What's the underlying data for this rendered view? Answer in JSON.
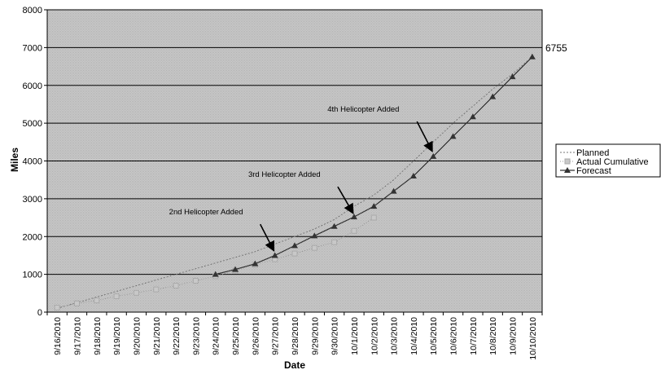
{
  "chart_data": {
    "type": "line",
    "title": "",
    "xlabel": "Date",
    "ylabel": "Miles",
    "ylim": [
      0,
      8000
    ],
    "yticks": [
      0,
      1000,
      2000,
      3000,
      4000,
      5000,
      6000,
      7000,
      8000
    ],
    "grid": true,
    "legend_position": "right",
    "categories": [
      "9/16/2010",
      "9/17/2010",
      "9/18/2010",
      "9/19/2010",
      "9/20/2010",
      "9/21/2010",
      "9/22/2010",
      "9/23/2010",
      "9/24/2010",
      "9/25/2010",
      "9/26/2010",
      "9/27/2010",
      "9/28/2010",
      "9/29/2010",
      "9/30/2010",
      "10/1/2010",
      "10/2/2010",
      "10/3/2010",
      "10/4/2010",
      "10/5/2010",
      "10/6/2010",
      "10/7/2010",
      "10/8/2010",
      "10/9/2010",
      "10/10/2010"
    ],
    "series": [
      {
        "name": "Planned",
        "color": "#777777",
        "values": [
          100,
          250,
          400,
          550,
          700,
          850,
          1000,
          1150,
          1300,
          1450,
          1600,
          1800,
          2000,
          2200,
          2450,
          2800,
          3100,
          3500,
          4000,
          4500,
          5000,
          5450,
          5900,
          6300,
          6755
        ]
      },
      {
        "name": "Actual Cumulative",
        "color": "#999999",
        "values": [
          120,
          230,
          310,
          420,
          510,
          600,
          700,
          830,
          950,
          1100,
          1250,
          1400,
          1550,
          1700,
          1850,
          2150,
          2500,
          null,
          null,
          null,
          null,
          null,
          null,
          null,
          null
        ]
      },
      {
        "name": "Forecast",
        "color": "#333333",
        "values": [
          null,
          null,
          null,
          null,
          null,
          null,
          null,
          null,
          1000,
          1130,
          1280,
          1500,
          1760,
          2020,
          2270,
          2520,
          2800,
          3200,
          3600,
          4120,
          4650,
          5170,
          5700,
          6230,
          6755
        ]
      }
    ],
    "annotations": [
      {
        "text": "2nd Helicopter Added",
        "arrow_to_category": "9/27/2010",
        "arrow_to_value": 1550
      },
      {
        "text": "3rd Helicopter Added",
        "arrow_to_category": "10/1/2010",
        "arrow_to_value": 2540
      },
      {
        "text": "4th Helicopter Added",
        "arrow_to_category": "10/5/2010",
        "arrow_to_value": 4180
      }
    ],
    "end_label": "6755"
  }
}
